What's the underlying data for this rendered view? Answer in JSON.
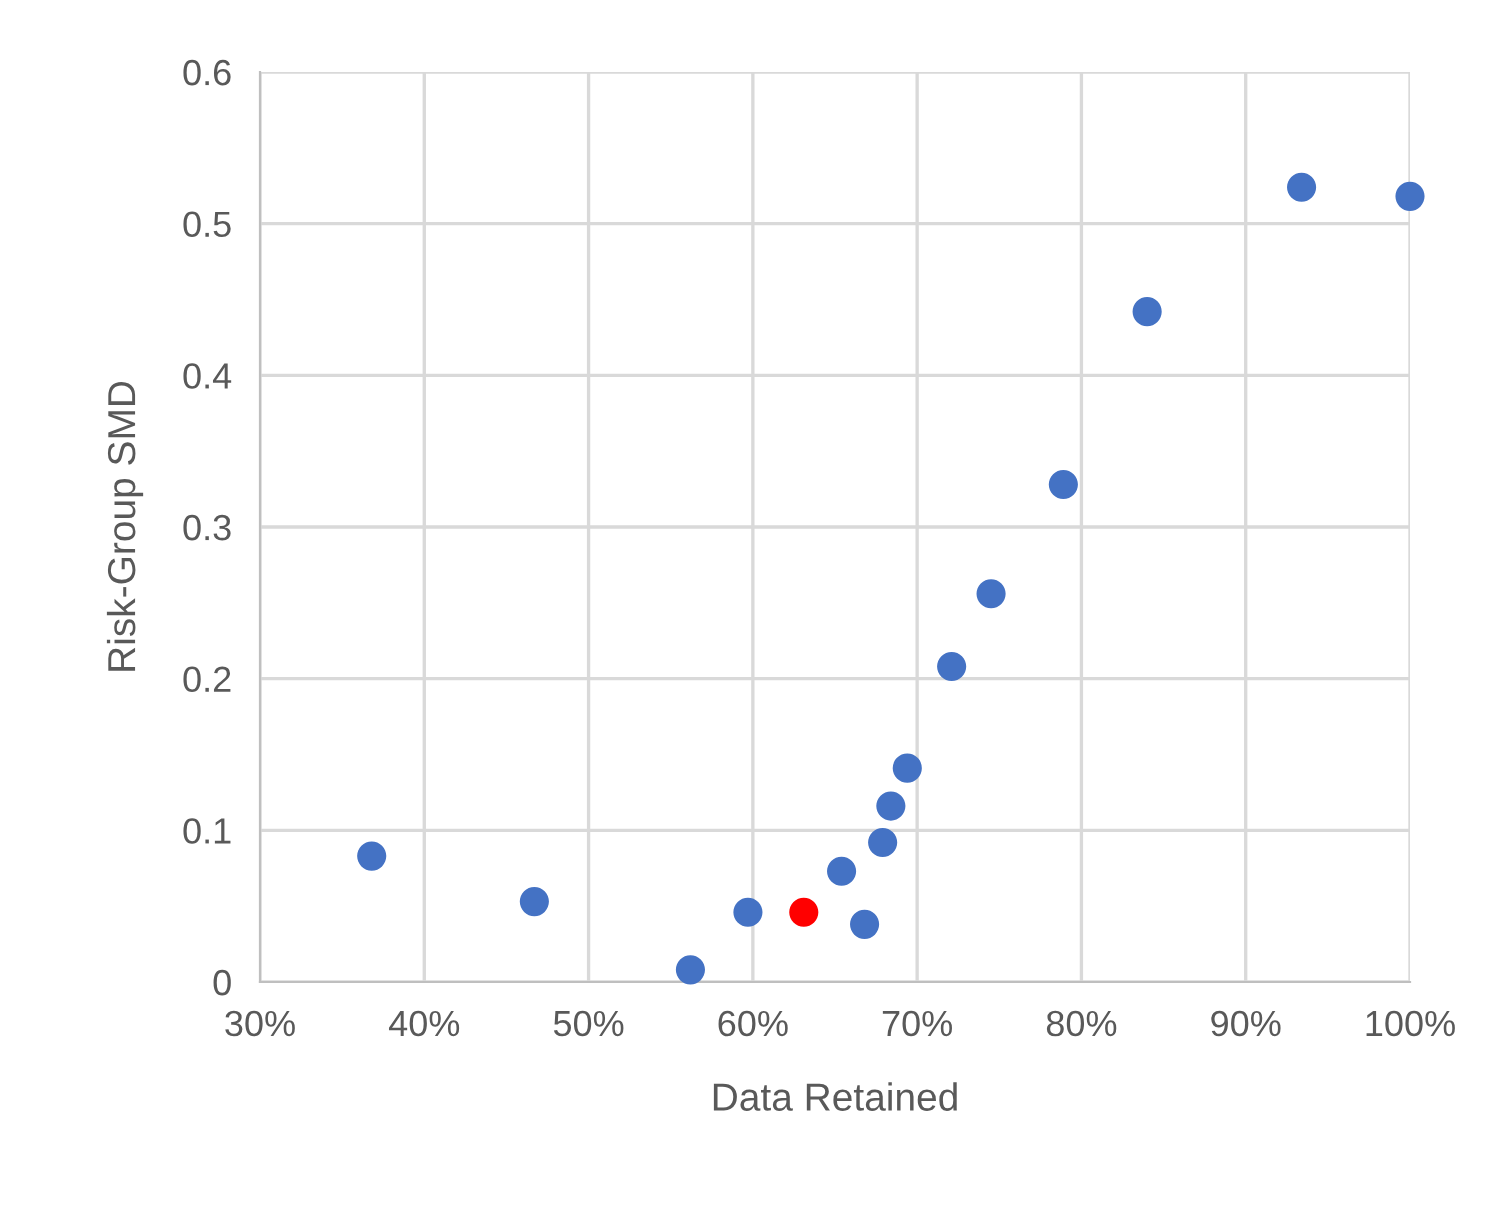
{
  "chart_data": {
    "type": "scatter",
    "xlabel": "Data Retained",
    "ylabel": "Risk-Group SMD",
    "x": [
      36.8,
      46.7,
      56.2,
      59.7,
      63.1,
      65.4,
      66.8,
      67.9,
      68.4,
      69.4,
      72.1,
      74.5,
      78.9,
      84.0,
      93.4,
      100.0
    ],
    "values": [
      0.083,
      0.053,
      0.008,
      0.046,
      0.046,
      0.073,
      0.038,
      0.092,
      0.116,
      0.141,
      0.208,
      0.256,
      0.328,
      0.442,
      0.524,
      0.518
    ],
    "colors": [
      "#4472c4",
      "#4472c4",
      "#4472c4",
      "#4472c4",
      "#ff0000",
      "#4472c4",
      "#4472c4",
      "#4472c4",
      "#4472c4",
      "#4472c4",
      "#4472c4",
      "#4472c4",
      "#4472c4",
      "#4472c4",
      "#4472c4",
      "#4472c4"
    ],
    "xlim": [
      30,
      100
    ],
    "xticks": [
      {
        "value": 30,
        "label": "30%"
      },
      {
        "value": 40,
        "label": "40%"
      },
      {
        "value": 50,
        "label": "50%"
      },
      {
        "value": 60,
        "label": "60%"
      },
      {
        "value": 70,
        "label": "70%"
      },
      {
        "value": 80,
        "label": "80%"
      },
      {
        "value": 90,
        "label": "90%"
      },
      {
        "value": 100,
        "label": "100%"
      }
    ],
    "ylim": [
      0,
      0.6
    ],
    "yticks": [
      0,
      0.1,
      0.2,
      0.3,
      0.4,
      0.5,
      0.6
    ],
    "grid": true,
    "marker": "circle"
  }
}
